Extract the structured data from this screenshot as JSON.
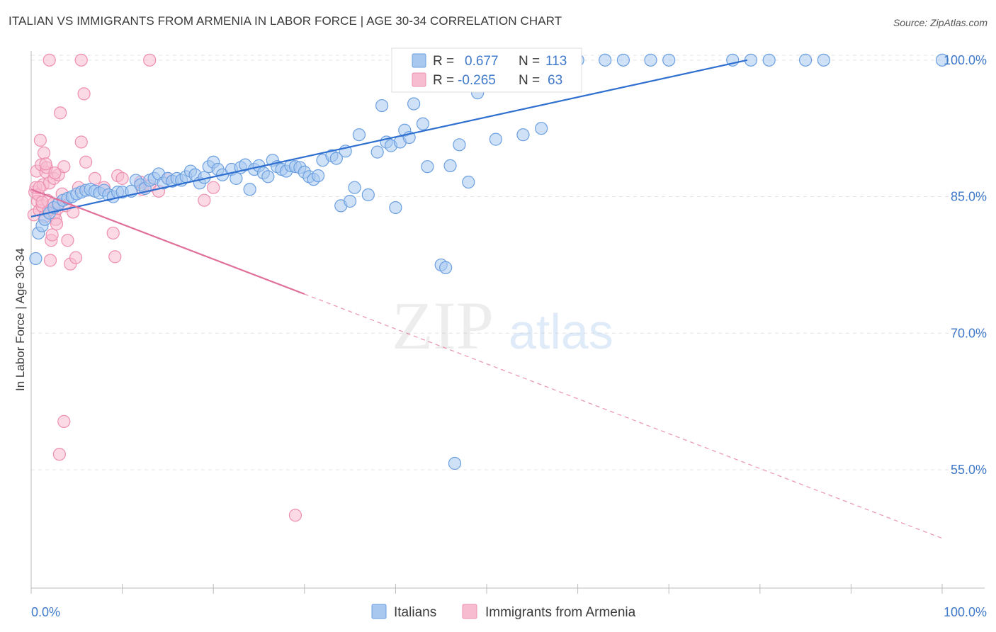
{
  "title": "ITALIAN VS IMMIGRANTS FROM ARMENIA IN LABOR FORCE | AGE 30-34 CORRELATION CHART",
  "source": "Source: ZipAtlas.com",
  "watermark": {
    "zip": "ZIP",
    "atlas": "atlas"
  },
  "colors": {
    "blue_fill": "#a8c8f0",
    "blue_stroke": "#6b9fe0",
    "blue_line": "#2f6fd0",
    "pink_fill": "#f7bcd0",
    "pink_stroke": "#ee8fb0",
    "pink_line": "#e0709a",
    "label_blue": "#3f79c9",
    "grid": "#e3e3e3"
  },
  "legend": {
    "rows": [
      {
        "r_label": "R =",
        "r_value": "0.677",
        "n_label": "N =",
        "n_value": "113"
      },
      {
        "r_label": "R =",
        "r_value": "-0.265",
        "n_label": "N =",
        "n_value": "63"
      }
    ]
  },
  "chart_data": {
    "type": "scatter",
    "xlabel": "",
    "ylabel": "In Labor Force | Age 30-34",
    "x_tick_labels": [
      "0.0%",
      "100.0%"
    ],
    "y_tick_labels": [
      "100.0%",
      "85.0%",
      "70.0%",
      "55.0%"
    ],
    "y_ticks": [
      100,
      85,
      70,
      55
    ],
    "xlim": [
      0,
      100
    ],
    "ylim": [
      42,
      101
    ],
    "grid": true,
    "legend_position": "top-center",
    "series": [
      {
        "name": "Italians",
        "color": "#6b9fe0",
        "trend": {
          "x0": 0,
          "y0": 82.8,
          "x1": 78.6,
          "y1": 100,
          "x_dashed_end": 78.6
        },
        "points": [
          [
            0.5,
            78.2
          ],
          [
            0.8,
            81.0
          ],
          [
            1.2,
            81.8
          ],
          [
            1.5,
            82.5
          ],
          [
            2,
            83.2
          ],
          [
            2.5,
            83.8
          ],
          [
            3,
            84.2
          ],
          [
            3.5,
            84.6
          ],
          [
            4,
            84.8
          ],
          [
            4.5,
            85.0
          ],
          [
            5,
            85.3
          ],
          [
            5.5,
            85.5
          ],
          [
            6,
            85.7
          ],
          [
            6.5,
            85.8
          ],
          [
            7,
            85.6
          ],
          [
            7.5,
            85.4
          ],
          [
            8,
            85.7
          ],
          [
            8.5,
            85.2
          ],
          [
            9,
            85.0
          ],
          [
            9.5,
            85.5
          ],
          [
            10,
            85.5
          ],
          [
            11,
            85.6
          ],
          [
            11.5,
            86.8
          ],
          [
            12,
            86.3
          ],
          [
            12.5,
            85.9
          ],
          [
            13,
            86.8
          ],
          [
            13.5,
            87.0
          ],
          [
            14,
            87.5
          ],
          [
            14.5,
            86.5
          ],
          [
            15,
            87.0
          ],
          [
            15.5,
            86.7
          ],
          [
            16,
            87.0
          ],
          [
            16.5,
            86.8
          ],
          [
            17,
            87.2
          ],
          [
            17.5,
            87.8
          ],
          [
            18,
            87.4
          ],
          [
            18.5,
            86.5
          ],
          [
            19,
            87.1
          ],
          [
            19.5,
            88.3
          ],
          [
            20,
            88.8
          ],
          [
            20.5,
            88.0
          ],
          [
            21,
            87.4
          ],
          [
            22,
            88.0
          ],
          [
            22.5,
            87.0
          ],
          [
            23,
            88.2
          ],
          [
            23.5,
            88.5
          ],
          [
            24,
            85.8
          ],
          [
            24.5,
            88.0
          ],
          [
            25,
            88.4
          ],
          [
            25.5,
            87.6
          ],
          [
            26,
            87.2
          ],
          [
            26.5,
            89.0
          ],
          [
            27,
            88.3
          ],
          [
            27.5,
            88.0
          ],
          [
            28,
            87.8
          ],
          [
            28.5,
            88.4
          ],
          [
            29,
            88.3
          ],
          [
            29.5,
            88.2
          ],
          [
            30,
            87.7
          ],
          [
            30.5,
            87.2
          ],
          [
            31,
            86.9
          ],
          [
            31.5,
            87.3
          ],
          [
            32,
            89.0
          ],
          [
            33,
            89.5
          ],
          [
            33.5,
            89.2
          ],
          [
            34,
            84.0
          ],
          [
            34.5,
            90.0
          ],
          [
            35,
            84.5
          ],
          [
            35.5,
            86.0
          ],
          [
            36,
            91.8
          ],
          [
            37,
            85.2
          ],
          [
            38,
            89.9
          ],
          [
            38.5,
            95.0
          ],
          [
            39,
            91.0
          ],
          [
            39.5,
            90.6
          ],
          [
            40,
            83.8
          ],
          [
            40.5,
            91.0
          ],
          [
            41,
            92.3
          ],
          [
            41.5,
            91.5
          ],
          [
            42,
            95.2
          ],
          [
            43,
            93.0
          ],
          [
            43.5,
            88.3
          ],
          [
            44,
            98.2
          ],
          [
            45,
            77.5
          ],
          [
            45.5,
            77.2
          ],
          [
            46,
            88.4
          ],
          [
            47,
            90.7
          ],
          [
            48,
            86.6
          ],
          [
            49,
            96.4
          ],
          [
            50,
            98.5
          ],
          [
            51,
            91.3
          ],
          [
            52,
            100
          ],
          [
            53,
            100
          ],
          [
            54,
            91.8
          ],
          [
            55,
            100
          ],
          [
            56,
            92.5
          ],
          [
            57,
            100
          ],
          [
            58,
            100
          ],
          [
            60,
            100
          ],
          [
            63,
            100
          ],
          [
            65,
            100
          ],
          [
            68,
            100
          ],
          [
            70,
            100
          ],
          [
            77,
            100
          ],
          [
            79,
            100
          ],
          [
            81,
            100
          ],
          [
            85,
            100
          ],
          [
            87,
            100
          ],
          [
            100,
            100
          ],
          [
            46.5,
            55.7
          ],
          [
            41,
            100
          ],
          [
            44,
            100
          ],
          [
            47,
            100
          ]
        ]
      },
      {
        "name": "Immigrants from Armenia",
        "color": "#ee8fb0",
        "trend": {
          "x0": 0,
          "y0": 85.8,
          "x1": 30,
          "y1": 74.3,
          "x_dashed_end": 100
        },
        "points": [
          [
            0.3,
            83.0
          ],
          [
            0.4,
            85.5
          ],
          [
            0.5,
            86.0
          ],
          [
            0.6,
            87.8
          ],
          [
            0.7,
            84.5
          ],
          [
            0.8,
            85.2
          ],
          [
            0.9,
            83.5
          ],
          [
            1.0,
            91.2
          ],
          [
            1.1,
            88.5
          ],
          [
            1.2,
            84.0
          ],
          [
            1.3,
            86.3
          ],
          [
            1.4,
            89.8
          ],
          [
            1.5,
            82.8
          ],
          [
            1.6,
            87.7
          ],
          [
            1.7,
            88.2
          ],
          [
            1.8,
            84.6
          ],
          [
            1.9,
            83.4
          ],
          [
            2.0,
            86.5
          ],
          [
            2.1,
            78.0
          ],
          [
            2.2,
            80.2
          ],
          [
            2.3,
            80.8
          ],
          [
            2.4,
            84.2
          ],
          [
            2.5,
            87.0
          ],
          [
            2.6,
            83.2
          ],
          [
            2.7,
            82.5
          ],
          [
            2.8,
            82.0
          ],
          [
            2.9,
            83.7
          ],
          [
            3.0,
            87.4
          ],
          [
            3.2,
            94.2
          ],
          [
            3.4,
            85.3
          ],
          [
            3.6,
            88.3
          ],
          [
            3.8,
            84.0
          ],
          [
            4.0,
            80.2
          ],
          [
            4.3,
            77.6
          ],
          [
            4.6,
            83.3
          ],
          [
            4.9,
            78.3
          ],
          [
            5.2,
            86.0
          ],
          [
            5.5,
            91.0
          ],
          [
            5.8,
            96.3
          ],
          [
            6.0,
            88.8
          ],
          [
            7.0,
            87.0
          ],
          [
            8.0,
            86.0
          ],
          [
            9.0,
            81.0
          ],
          [
            9.2,
            78.4
          ],
          [
            9.5,
            87.3
          ],
          [
            10.0,
            87.0
          ],
          [
            12.0,
            86.6
          ],
          [
            12.2,
            85.8
          ],
          [
            13.0,
            86.2
          ],
          [
            14.0,
            85.6
          ],
          [
            15.0,
            87.0
          ],
          [
            19.0,
            84.6
          ],
          [
            20.0,
            86.0
          ],
          [
            2.0,
            100
          ],
          [
            5.5,
            100
          ],
          [
            13.0,
            100
          ],
          [
            3.6,
            60.3
          ],
          [
            3.1,
            56.7
          ],
          [
            29.0,
            50.0
          ],
          [
            1.6,
            88.6
          ],
          [
            0.9,
            86.0
          ],
          [
            1.2,
            84.4
          ],
          [
            2.6,
            87.6
          ]
        ]
      }
    ]
  }
}
